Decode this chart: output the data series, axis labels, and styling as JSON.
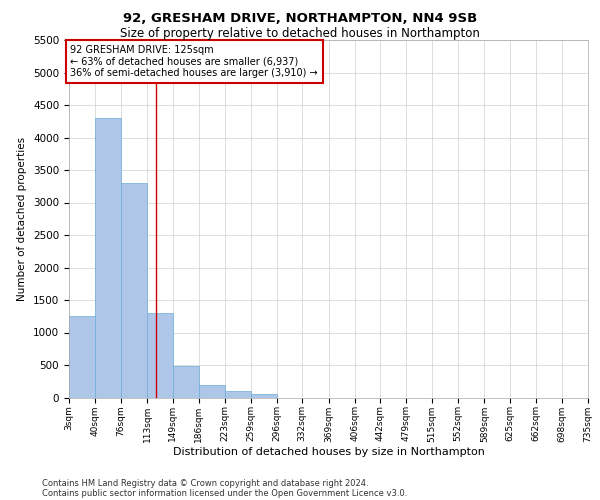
{
  "title_line1": "92, GRESHAM DRIVE, NORTHAMPTON, NN4 9SB",
  "title_line2": "Size of property relative to detached houses in Northampton",
  "xlabel": "Distribution of detached houses by size in Northampton",
  "ylabel": "Number of detached properties",
  "footer_line1": "Contains HM Land Registry data © Crown copyright and database right 2024.",
  "footer_line2": "Contains public sector information licensed under the Open Government Licence v3.0.",
  "annotation_line1": "92 GRESHAM DRIVE: 125sqm",
  "annotation_line2": "← 63% of detached houses are smaller (6,937)",
  "annotation_line3": "36% of semi-detached houses are larger (3,910) →",
  "bar_color": "#aec6e8",
  "bar_edge_color": "#6baed6",
  "red_line_x": 125,
  "bin_edges": [
    3,
    40,
    76,
    113,
    149,
    186,
    223,
    259,
    296,
    332,
    369,
    406,
    442,
    479,
    515,
    552,
    589,
    625,
    662,
    698,
    735
  ],
  "bar_heights": [
    1250,
    4300,
    3300,
    1300,
    480,
    200,
    100,
    60,
    0,
    0,
    0,
    0,
    0,
    0,
    0,
    0,
    0,
    0,
    0,
    0
  ],
  "ylim": [
    0,
    5500
  ],
  "yticks": [
    0,
    500,
    1000,
    1500,
    2000,
    2500,
    3000,
    3500,
    4000,
    4500,
    5000,
    5500
  ],
  "background_color": "#ffffff",
  "grid_color": "#d0d0d0",
  "annotation_box_edge_color": "#cc0000",
  "red_line_color": "#cc0000",
  "title1_fontsize": 9.5,
  "title2_fontsize": 8.5,
  "footer_fontsize": 6.0,
  "ylabel_fontsize": 7.5,
  "xlabel_fontsize": 8.0,
  "ytick_fontsize": 7.5,
  "xtick_fontsize": 6.5,
  "annot_fontsize": 7.0
}
